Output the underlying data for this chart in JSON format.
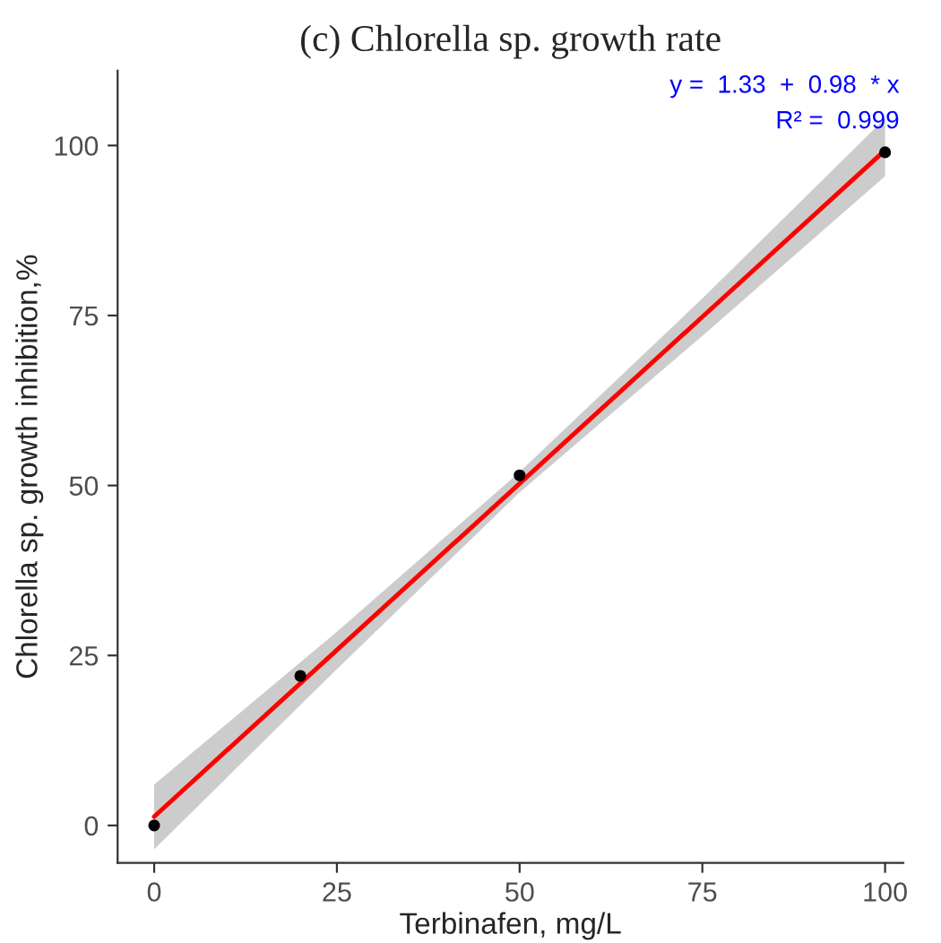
{
  "chart_data": {
    "type": "scatter",
    "title": "(c) Chlorella sp. growth rate",
    "xlabel": "Terbinafen, mg/L",
    "ylabel": "Chlorella sp. growth inhibition,%",
    "series": [
      {
        "color": "#000000",
        "x": [
          0,
          20,
          50,
          100
        ],
        "values": [
          0,
          22,
          51.5,
          99
        ],
        "marker": "circle"
      },
      {
        "type": "line",
        "color": "#ff0000",
        "x": [
          0,
          25,
          50,
          75,
          100
        ],
        "values": [
          1.3,
          25.8,
          50.3,
          74.8,
          99.3
        ],
        "lower": [
          -3.5,
          23,
          49,
          72,
          95.5
        ],
        "upper": [
          6,
          28.5,
          52,
          77.5,
          104
        ],
        "line_style": "solid"
      }
    ],
    "annotations": [
      "y =  1.33  +  0.98  * x",
      "R² =  0.999"
    ],
    "xlim": [
      -5,
      102.5
    ],
    "ylim": [
      -5.5,
      111
    ],
    "xticks": [
      0,
      25,
      50,
      75,
      100
    ],
    "yticks": [
      0,
      25,
      50,
      75,
      100
    ],
    "grid": false
  }
}
